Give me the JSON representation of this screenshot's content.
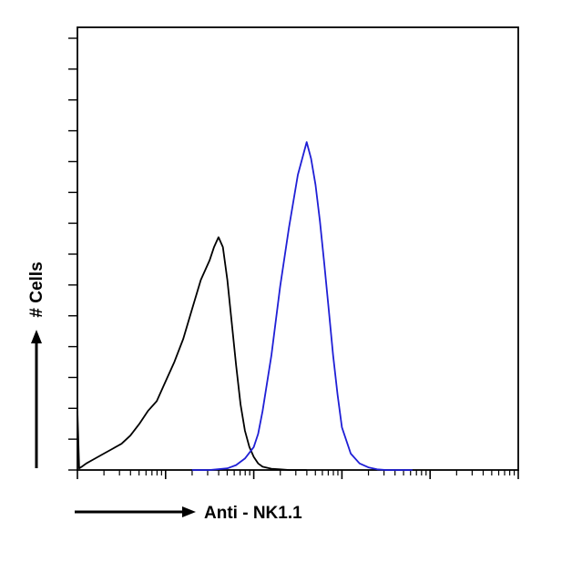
{
  "chart_data": {
    "type": "line",
    "title": "",
    "xlabel": "Anti - NK1.1",
    "ylabel": "# Cells",
    "x_scale": "log",
    "x_decades": 5,
    "grid": false,
    "legend": "none",
    "series": [
      {
        "color": "#000000",
        "x": [
          0,
          0.02,
          0.05,
          0.1,
          0.2,
          0.3,
          0.4,
          0.5,
          0.6,
          0.7,
          0.8,
          0.9,
          1.0,
          1.1,
          1.2,
          1.3,
          1.4,
          1.5,
          1.55,
          1.6,
          1.65,
          1.7,
          1.75,
          1.8,
          1.85,
          1.9,
          1.95,
          2.0,
          2.05,
          2.1,
          2.2,
          2.3,
          2.4,
          2.6
        ],
        "y": [
          18,
          0.5,
          1,
          2,
          3.5,
          5,
          6.5,
          8,
          10.5,
          14,
          18,
          21,
          27,
          33,
          40,
          49,
          58,
          64,
          68,
          71,
          68,
          58,
          45,
          32,
          20,
          12,
          7,
          4,
          2,
          1,
          0.4,
          0.2,
          0,
          0
        ]
      },
      {
        "color": "#1f1fd6",
        "x": [
          1.3,
          1.5,
          1.7,
          1.8,
          1.9,
          2.0,
          2.05,
          2.1,
          2.2,
          2.3,
          2.4,
          2.5,
          2.6,
          2.65,
          2.7,
          2.75,
          2.8,
          2.85,
          2.9,
          2.95,
          3.0,
          3.1,
          3.2,
          3.3,
          3.4,
          3.5,
          3.6,
          3.8
        ],
        "y": [
          0,
          0,
          0.5,
          1.5,
          3.5,
          7,
          11,
          18,
          35,
          56,
          74,
          90,
          100,
          95,
          87,
          76,
          63,
          49,
          35,
          23,
          13,
          5,
          2,
          0.8,
          0.2,
          0,
          0,
          0
        ]
      }
    ],
    "ylim": [
      0,
      135
    ]
  }
}
